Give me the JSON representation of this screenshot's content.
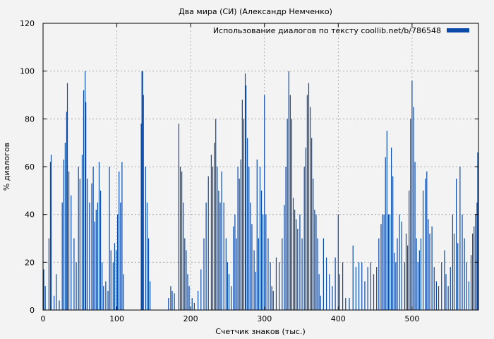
{
  "chart_data": {
    "type": "bar",
    "title": "Два мира (СИ) (Александр Немченко)",
    "xlabel": "Счетчик знаков (тыс.)",
    "ylabel": "% диалогов",
    "xlim": [
      0,
      590
    ],
    "ylim": [
      0,
      120
    ],
    "xticks": [
      0,
      100,
      200,
      300,
      400,
      500
    ],
    "yticks": [
      0,
      20,
      40,
      60,
      80,
      100,
      120
    ],
    "grid": true,
    "legend_position": "top-right",
    "series": [
      {
        "name": "Использование диалогов по тексту coollib.net/b/786548",
        "color": "#0b4aa8",
        "peaks": [
          [
            1,
            17
          ],
          [
            3,
            10
          ],
          [
            8,
            30
          ],
          [
            10,
            62
          ],
          [
            11,
            65
          ],
          [
            15,
            6
          ],
          [
            18,
            15
          ],
          [
            22,
            4
          ],
          [
            26,
            45
          ],
          [
            28,
            63
          ],
          [
            30,
            70
          ],
          [
            32,
            83
          ],
          [
            33,
            95
          ],
          [
            35,
            58
          ],
          [
            38,
            48
          ],
          [
            42,
            30
          ],
          [
            45,
            20
          ],
          [
            48,
            60
          ],
          [
            50,
            55
          ],
          [
            53,
            65
          ],
          [
            55,
            92
          ],
          [
            57,
            100
          ],
          [
            58,
            87
          ],
          [
            60,
            55
          ],
          [
            63,
            45
          ],
          [
            66,
            53
          ],
          [
            68,
            60
          ],
          [
            70,
            37
          ],
          [
            72,
            42
          ],
          [
            74,
            45
          ],
          [
            76,
            62
          ],
          [
            78,
            50
          ],
          [
            80,
            20
          ],
          [
            82,
            10
          ],
          [
            85,
            12
          ],
          [
            88,
            8
          ],
          [
            90,
            60
          ],
          [
            92,
            25
          ],
          [
            95,
            20
          ],
          [
            97,
            28
          ],
          [
            99,
            25
          ],
          [
            101,
            40
          ],
          [
            103,
            58
          ],
          [
            105,
            45
          ],
          [
            107,
            62
          ],
          [
            109,
            15
          ],
          [
            133,
            78
          ],
          [
            134,
            100
          ],
          [
            135,
            100
          ],
          [
            136,
            90
          ],
          [
            139,
            60
          ],
          [
            141,
            45
          ],
          [
            143,
            30
          ],
          [
            145,
            12
          ],
          [
            170,
            5
          ],
          [
            173,
            10
          ],
          [
            175,
            8
          ],
          [
            178,
            7
          ],
          [
            184,
            78
          ],
          [
            186,
            60
          ],
          [
            188,
            58
          ],
          [
            190,
            45
          ],
          [
            192,
            30
          ],
          [
            194,
            25
          ],
          [
            196,
            15
          ],
          [
            198,
            10
          ],
          [
            202,
            5
          ],
          [
            205,
            3
          ],
          [
            210,
            8
          ],
          [
            214,
            17
          ],
          [
            218,
            30
          ],
          [
            221,
            45
          ],
          [
            224,
            56
          ],
          [
            228,
            65
          ],
          [
            230,
            60
          ],
          [
            232,
            70
          ],
          [
            234,
            80
          ],
          [
            236,
            60
          ],
          [
            238,
            50
          ],
          [
            240,
            45
          ],
          [
            242,
            58
          ],
          [
            245,
            45
          ],
          [
            248,
            30
          ],
          [
            250,
            20
          ],
          [
            252,
            15
          ],
          [
            255,
            10
          ],
          [
            258,
            35
          ],
          [
            260,
            40
          ],
          [
            262,
            30
          ],
          [
            264,
            60
          ],
          [
            266,
            55
          ],
          [
            268,
            63
          ],
          [
            270,
            88
          ],
          [
            272,
            80
          ],
          [
            274,
            99
          ],
          [
            275,
            94
          ],
          [
            277,
            72
          ],
          [
            279,
            60
          ],
          [
            281,
            45
          ],
          [
            283,
            36
          ],
          [
            286,
            25
          ],
          [
            288,
            16
          ],
          [
            290,
            63
          ],
          [
            292,
            30
          ],
          [
            294,
            60
          ],
          [
            296,
            50
          ],
          [
            298,
            40
          ],
          [
            300,
            90
          ],
          [
            302,
            40
          ],
          [
            305,
            30
          ],
          [
            308,
            20
          ],
          [
            310,
            10
          ],
          [
            312,
            8
          ],
          [
            316,
            22
          ],
          [
            320,
            20
          ],
          [
            324,
            30
          ],
          [
            327,
            44
          ],
          [
            329,
            60
          ],
          [
            331,
            80
          ],
          [
            333,
            100
          ],
          [
            335,
            90
          ],
          [
            337,
            80
          ],
          [
            339,
            47
          ],
          [
            341,
            42
          ],
          [
            343,
            38
          ],
          [
            345,
            34
          ],
          [
            348,
            40
          ],
          [
            351,
            30
          ],
          [
            354,
            60
          ],
          [
            356,
            68
          ],
          [
            358,
            90
          ],
          [
            360,
            95
          ],
          [
            362,
            85
          ],
          [
            364,
            72
          ],
          [
            366,
            55
          ],
          [
            368,
            42
          ],
          [
            370,
            40
          ],
          [
            372,
            30
          ],
          [
            374,
            15
          ],
          [
            376,
            6
          ],
          [
            380,
            30
          ],
          [
            384,
            22
          ],
          [
            388,
            15
          ],
          [
            392,
            10
          ],
          [
            396,
            22
          ],
          [
            400,
            40
          ],
          [
            402,
            15
          ],
          [
            406,
            20
          ],
          [
            410,
            5
          ],
          [
            415,
            5
          ],
          [
            420,
            27
          ],
          [
            424,
            18
          ],
          [
            428,
            20
          ],
          [
            432,
            20
          ],
          [
            436,
            12
          ],
          [
            440,
            18
          ],
          [
            444,
            20
          ],
          [
            448,
            15
          ],
          [
            452,
            18
          ],
          [
            455,
            30
          ],
          [
            458,
            36
          ],
          [
            460,
            40
          ],
          [
            462,
            40
          ],
          [
            464,
            64
          ],
          [
            466,
            75
          ],
          [
            468,
            40
          ],
          [
            470,
            40
          ],
          [
            472,
            68
          ],
          [
            474,
            56
          ],
          [
            476,
            24
          ],
          [
            478,
            20
          ],
          [
            480,
            30
          ],
          [
            483,
            40
          ],
          [
            486,
            37
          ],
          [
            490,
            20
          ],
          [
            492,
            32
          ],
          [
            494,
            27
          ],
          [
            496,
            50
          ],
          [
            498,
            80
          ],
          [
            500,
            96
          ],
          [
            502,
            85
          ],
          [
            504,
            62
          ],
          [
            506,
            30
          ],
          [
            508,
            20
          ],
          [
            510,
            25
          ],
          [
            512,
            30
          ],
          [
            515,
            50
          ],
          [
            518,
            55
          ],
          [
            520,
            58
          ],
          [
            522,
            38
          ],
          [
            524,
            32
          ],
          [
            527,
            35
          ],
          [
            530,
            18
          ],
          [
            533,
            12
          ],
          [
            536,
            10
          ],
          [
            540,
            20
          ],
          [
            544,
            25
          ],
          [
            546,
            15
          ],
          [
            549,
            10
          ],
          [
            552,
            18
          ],
          [
            555,
            40
          ],
          [
            557,
            32
          ],
          [
            560,
            55
          ],
          [
            562,
            28
          ],
          [
            565,
            60
          ],
          [
            568,
            40
          ],
          [
            571,
            30
          ],
          [
            574,
            20
          ],
          [
            577,
            12
          ],
          [
            580,
            23
          ],
          [
            582,
            32
          ],
          [
            584,
            35
          ],
          [
            586,
            40
          ],
          [
            588,
            45
          ],
          [
            589,
            66
          ]
        ]
      }
    ]
  }
}
